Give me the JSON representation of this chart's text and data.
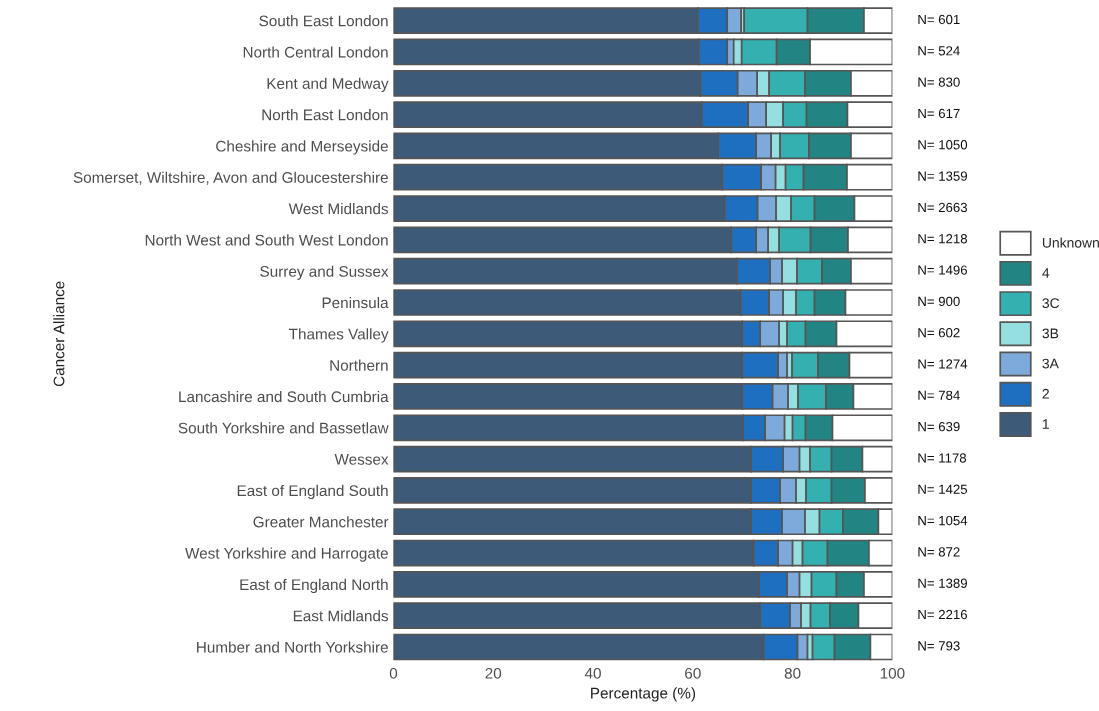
{
  "chart_data": {
    "type": "bar",
    "orientation": "horizontal",
    "stacked": true,
    "xlabel": "Percentage (%)",
    "ylabel": "Cancer Alliance",
    "categories": [
      "South East London",
      "North Central London",
      "Kent and Medway",
      "North East London",
      "Cheshire and Merseyside",
      "Somerset, Wiltshire, Avon and Gloucestershire",
      "West Midlands",
      "North West and South West London",
      "Surrey and Sussex",
      "Peninsula",
      "Thames Valley",
      "Northern",
      "Lancashire and South Cumbria",
      "South Yorkshire and Bassetlaw",
      "Wessex",
      "East of England South",
      "Greater Manchester",
      "West Yorkshire and Harrogate",
      "East of England North",
      "East Midlands",
      "Humber and North Yorkshire"
    ],
    "series": [
      {
        "name": "1",
        "color": "#3d5a78",
        "values": [
          61.0,
          61.2,
          61.5,
          61.8,
          65.1,
          65.9,
          66.4,
          67.7,
          68.8,
          69.6,
          69.9,
          69.9,
          69.9,
          70.1,
          71.7,
          71.7,
          71.7,
          72.2,
          73.3,
          73.5,
          74.2
        ]
      },
      {
        "name": "2",
        "color": "#1f6fc0",
        "values": [
          5.9,
          5.7,
          7.5,
          9.3,
          7.6,
          7.8,
          6.6,
          5.0,
          6.7,
          5.7,
          3.6,
          7.2,
          6.1,
          4.4,
          6.4,
          5.8,
          6.2,
          4.9,
          5.6,
          6.0,
          6.8
        ]
      },
      {
        "name": "3A",
        "color": "#7eaadb",
        "values": [
          2.8,
          1.3,
          3.9,
          3.6,
          3.0,
          2.9,
          3.7,
          2.4,
          2.4,
          2.8,
          3.8,
          1.8,
          3.1,
          3.9,
          3.3,
          3.2,
          4.6,
          2.9,
          2.5,
          2.2,
          2.0
        ]
      },
      {
        "name": "3B",
        "color": "#95dfe0",
        "values": [
          0.6,
          1.6,
          2.4,
          3.4,
          1.8,
          2.0,
          3.0,
          2.2,
          3.0,
          2.6,
          1.6,
          1.0,
          2.0,
          1.6,
          2.1,
          2.0,
          2.9,
          2.0,
          2.4,
          1.9,
          1.0
        ]
      },
      {
        "name": "3C",
        "color": "#35b0b0",
        "values": [
          12.7,
          7.0,
          7.2,
          4.7,
          5.8,
          3.6,
          4.7,
          6.3,
          5.0,
          3.7,
          3.7,
          5.2,
          5.6,
          2.6,
          4.3,
          5.1,
          4.7,
          5.0,
          5.0,
          3.9,
          4.4
        ]
      },
      {
        "name": "4",
        "color": "#238484",
        "values": [
          11.3,
          6.7,
          9.2,
          8.2,
          8.4,
          8.7,
          8.0,
          7.5,
          5.8,
          6.2,
          6.2,
          6.3,
          5.5,
          5.4,
          6.2,
          6.7,
          7.1,
          8.3,
          5.5,
          5.7,
          7.2
        ]
      },
      {
        "name": "Unknown",
        "color": "#ffffff",
        "values": [
          5.7,
          16.5,
          8.3,
          9.0,
          8.3,
          9.1,
          7.6,
          8.9,
          8.3,
          9.4,
          11.2,
          8.6,
          7.8,
          12.0,
          6.0,
          5.5,
          2.8,
          4.7,
          5.7,
          6.8,
          4.4
        ]
      }
    ],
    "xlim": [
      0,
      100
    ],
    "xticks": [
      0,
      20,
      40,
      60,
      80,
      100
    ],
    "legend": "right",
    "annotations": [
      "N= 601",
      "N= 524",
      "N= 830",
      "N= 617",
      "N= 1050",
      "N= 1359",
      "N= 2663",
      "N= 1218",
      "N= 1496",
      "N= 900",
      "N= 602",
      "N= 1274",
      "N= 784",
      "N= 639",
      "N= 1178",
      "N= 1425",
      "N= 1054",
      "N= 872",
      "N= 1389",
      "N= 2216",
      "N= 793"
    ]
  }
}
